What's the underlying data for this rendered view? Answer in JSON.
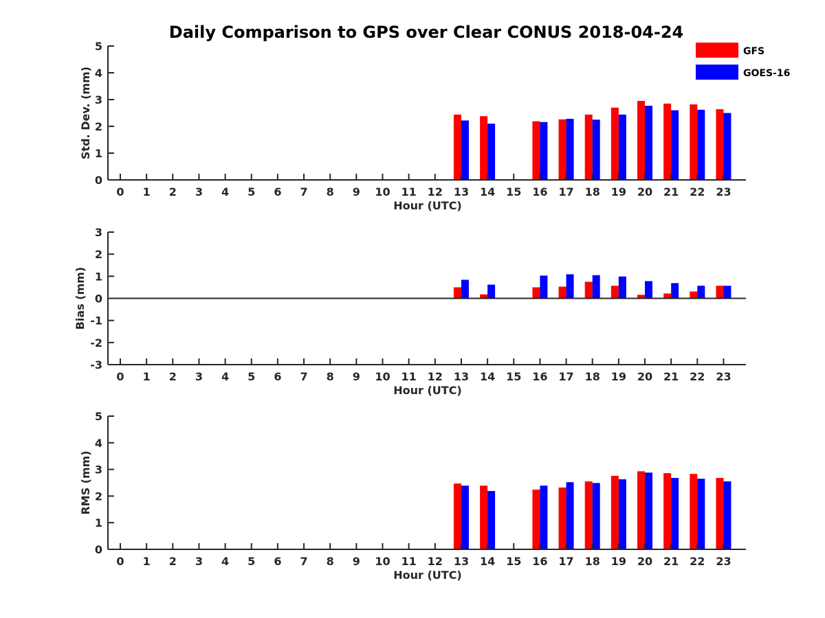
{
  "title": "Daily Comparison to GPS over Clear CONUS 2018-04-24",
  "legend": [
    {
      "name": "GFS",
      "color": "#ff0000"
    },
    {
      "name": "GOES-16",
      "color": "#0000ff"
    }
  ],
  "chart_data": [
    {
      "type": "bar",
      "xlabel": "Hour (UTC)",
      "ylabel": "Std. Dev. (mm)",
      "ylim": [
        0,
        5
      ],
      "yticks": [
        "0",
        "1",
        "2",
        "3",
        "4",
        "5"
      ],
      "categories": [
        "0",
        "1",
        "2",
        "3",
        "4",
        "5",
        "6",
        "7",
        "8",
        "9",
        "10",
        "11",
        "12",
        "13",
        "14",
        "15",
        "16",
        "17",
        "18",
        "19",
        "20",
        "21",
        "22",
        "23"
      ],
      "series": [
        {
          "name": "GFS",
          "values": [
            null,
            null,
            null,
            null,
            null,
            null,
            null,
            null,
            null,
            null,
            null,
            null,
            null,
            2.44,
            2.38,
            null,
            2.19,
            2.26,
            2.44,
            2.7,
            2.95,
            2.85,
            2.82,
            2.64
          ]
        },
        {
          "name": "GOES-16",
          "values": [
            null,
            null,
            null,
            null,
            null,
            null,
            null,
            null,
            null,
            null,
            null,
            null,
            null,
            2.22,
            2.1,
            null,
            2.16,
            2.28,
            2.25,
            2.44,
            2.77,
            2.6,
            2.62,
            2.5
          ]
        }
      ]
    },
    {
      "type": "bar",
      "xlabel": "Hour (UTC)",
      "ylabel": "Bias (mm)",
      "ylim": [
        -3,
        3
      ],
      "yticks": [
        "-3",
        "-2",
        "-1",
        "0",
        "1",
        "2",
        "3"
      ],
      "categories": [
        "0",
        "1",
        "2",
        "3",
        "4",
        "5",
        "6",
        "7",
        "8",
        "9",
        "10",
        "11",
        "12",
        "13",
        "14",
        "15",
        "16",
        "17",
        "18",
        "19",
        "20",
        "21",
        "22",
        "23"
      ],
      "series": [
        {
          "name": "GFS",
          "values": [
            null,
            null,
            null,
            null,
            null,
            null,
            null,
            null,
            null,
            null,
            null,
            null,
            null,
            0.5,
            0.18,
            null,
            0.5,
            0.53,
            0.75,
            0.57,
            0.16,
            0.22,
            0.31,
            0.57
          ]
        },
        {
          "name": "GOES-16",
          "values": [
            null,
            null,
            null,
            null,
            null,
            null,
            null,
            null,
            null,
            null,
            null,
            null,
            null,
            0.84,
            0.62,
            null,
            1.03,
            1.09,
            1.05,
            0.99,
            0.78,
            0.69,
            0.57,
            0.57
          ]
        }
      ]
    },
    {
      "type": "bar",
      "xlabel": "Hour (UTC)",
      "ylabel": "RMS (mm)",
      "ylim": [
        0,
        5
      ],
      "yticks": [
        "0",
        "1",
        "2",
        "3",
        "4",
        "5"
      ],
      "categories": [
        "0",
        "1",
        "2",
        "3",
        "4",
        "5",
        "6",
        "7",
        "8",
        "9",
        "10",
        "11",
        "12",
        "13",
        "14",
        "15",
        "16",
        "17",
        "18",
        "19",
        "20",
        "21",
        "22",
        "23"
      ],
      "series": [
        {
          "name": "GFS",
          "values": [
            null,
            null,
            null,
            null,
            null,
            null,
            null,
            null,
            null,
            null,
            null,
            null,
            null,
            2.47,
            2.39,
            null,
            2.24,
            2.32,
            2.55,
            2.76,
            2.93,
            2.86,
            2.83,
            2.68
          ]
        },
        {
          "name": "GOES-16",
          "values": [
            null,
            null,
            null,
            null,
            null,
            null,
            null,
            null,
            null,
            null,
            null,
            null,
            null,
            2.39,
            2.19,
            null,
            2.39,
            2.52,
            2.49,
            2.63,
            2.88,
            2.68,
            2.65,
            2.55
          ]
        }
      ]
    }
  ]
}
